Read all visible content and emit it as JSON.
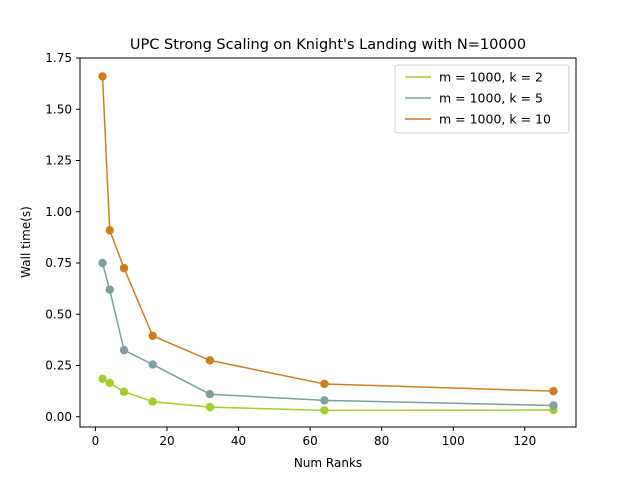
{
  "chart_data": {
    "type": "line",
    "title": "UPC Strong Scaling on Knight's Landing with N=10000",
    "xlabel": "Num Ranks",
    "ylabel": "Wall time(s)",
    "xlim": [
      -4.3,
      134.3
    ],
    "ylim": [
      -0.05,
      1.75
    ],
    "x_ticks": [
      0,
      20,
      40,
      60,
      80,
      100,
      120
    ],
    "y_ticks": [
      0.0,
      0.25,
      0.5,
      0.75,
      1.0,
      1.25,
      1.5,
      1.75
    ],
    "y_tick_labels": [
      "0.00",
      "0.25",
      "0.50",
      "0.75",
      "1.00",
      "1.25",
      "1.50",
      "1.75"
    ],
    "x": [
      2,
      4,
      8,
      16,
      32,
      64,
      128
    ],
    "grid": false,
    "legend_position": "top-right",
    "series": [
      {
        "name": "m = 1000, k = 2",
        "color": "#a6cc2e",
        "values": [
          0.185,
          0.165,
          0.122,
          0.074,
          0.047,
          0.031,
          0.033
        ]
      },
      {
        "name": "m = 1000, k = 5",
        "color": "#7f9e9e",
        "values": [
          0.75,
          0.62,
          0.325,
          0.255,
          0.11,
          0.08,
          0.055
        ]
      },
      {
        "name": "m = 1000, k = 10",
        "color": "#cc7f21",
        "values": [
          1.66,
          0.91,
          0.725,
          0.395,
          0.275,
          0.16,
          0.125
        ]
      }
    ]
  }
}
